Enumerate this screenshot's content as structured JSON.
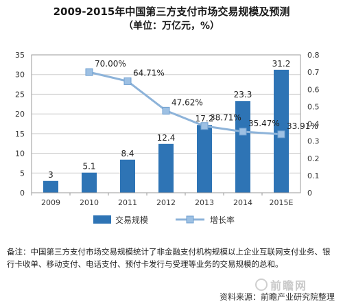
{
  "title": "2009-2015年中国第三方支付市场交易规模及预测",
  "subtitle": "（单位：万亿元，%）",
  "note": "备注：中国第三方支付市场交易规模统计了非金融支付机构规模以上企业互联网支付业务、银行卡收单、移动支付、电话支付、预付卡发行与受理等业务的交易规模的总和。",
  "source": "资料来源：前瞻产业研究院整理",
  "watermark": "前瞻网",
  "colors": {
    "bar": "#2e74b5",
    "line": "#8db3d9",
    "marker": "#9dc0e3",
    "grid": "#cfcfcf"
  },
  "chart_data": {
    "type": "bar",
    "categories": [
      "2009",
      "2010",
      "2011",
      "2012",
      "2013",
      "2014",
      "2015E"
    ],
    "series": [
      {
        "name": "交易规模",
        "type": "bar",
        "axis": "left",
        "values": [
          3,
          5.1,
          8.4,
          12.4,
          17.2,
          23.3,
          31.2
        ],
        "labels": [
          "3",
          "5.1",
          "8.4",
          "12.4",
          "17.2",
          "23.3",
          "31.2"
        ]
      },
      {
        "name": "增长率",
        "type": "line",
        "axis": "right",
        "values": [
          null,
          0.7,
          0.6471,
          0.4762,
          0.3871,
          0.3547,
          0.3391
        ],
        "labels": [
          "",
          "70.00%",
          "64.71%",
          "47.62%",
          "38.71%",
          "35.47%",
          "33.91%"
        ]
      }
    ],
    "left_axis": {
      "ylim": [
        0,
        35
      ],
      "ticks": [
        "0",
        "5",
        "10",
        "15",
        "20",
        "25",
        "30",
        "35"
      ]
    },
    "right_axis": {
      "ylim": [
        0,
        0.8
      ],
      "ticks": [
        "0",
        "0.1",
        "0.2",
        "0.3",
        "0.4",
        "0.5",
        "0.6",
        "0.7",
        "0.8"
      ]
    },
    "grid": true,
    "legend": "bottom"
  }
}
